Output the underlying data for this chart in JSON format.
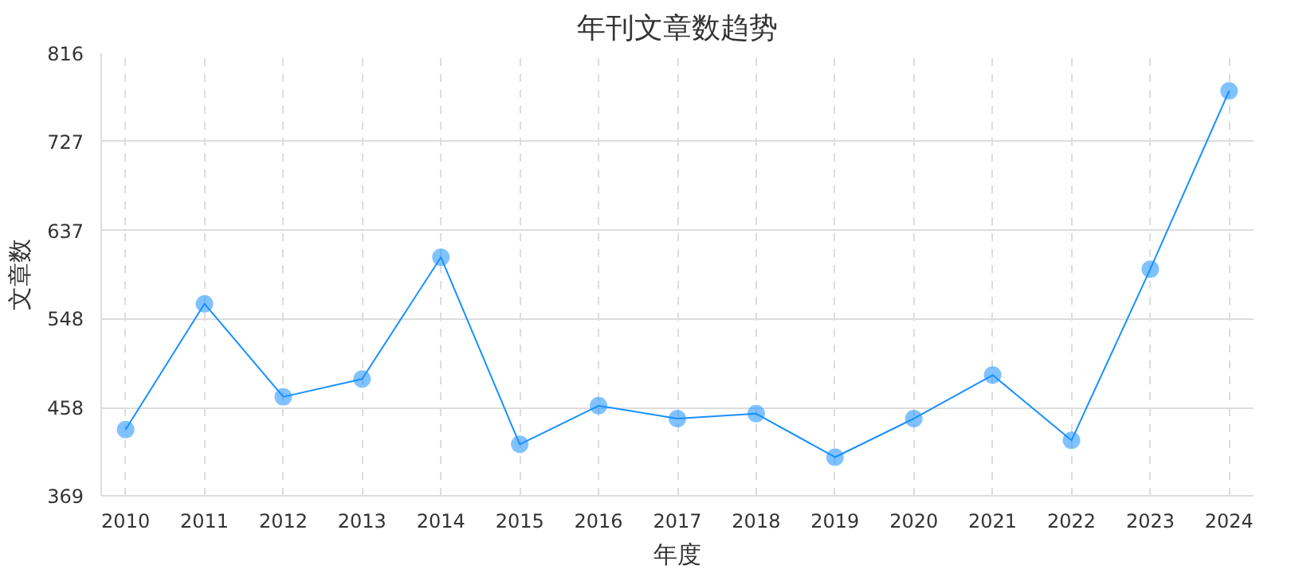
{
  "chart_data": {
    "type": "line",
    "title": "年刊文章数趋势",
    "xlabel": "年度",
    "ylabel": "文章数",
    "categories": [
      "2010",
      "2011",
      "2012",
      "2013",
      "2014",
      "2015",
      "2016",
      "2017",
      "2018",
      "2019",
      "2020",
      "2021",
      "2022",
      "2023",
      "2024"
    ],
    "series": [
      {
        "color": "#1890ff",
        "values": [
          436,
          563,
          469,
          487,
          610,
          421,
          460,
          447,
          452,
          408,
          447,
          491,
          425,
          598,
          778
        ]
      }
    ],
    "ylim": [
      369,
      816
    ],
    "yticks": [
      369,
      458,
      548,
      637,
      727,
      816
    ],
    "grid": true,
    "marker": "circle",
    "line_style": "solid"
  }
}
